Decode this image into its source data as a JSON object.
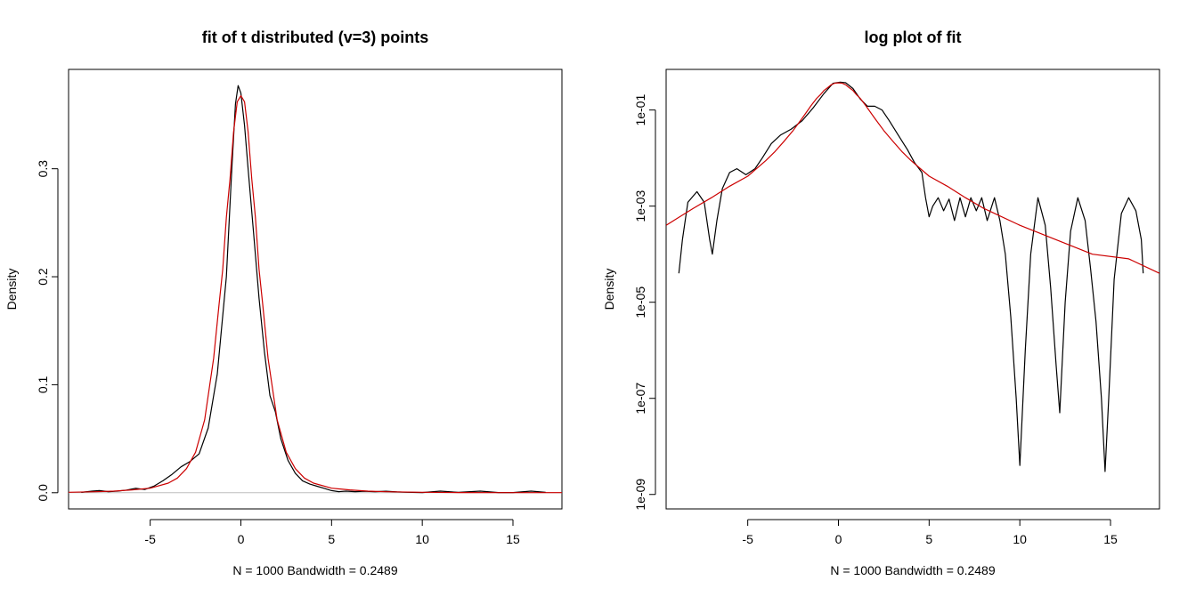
{
  "chart_data": [
    {
      "type": "line",
      "title": "fit of t distributed (v=3) points",
      "xlabel": "N = 1000   Bandwidth = 0.2489",
      "ylabel": "Density",
      "xlim": [
        -9.5,
        17.7
      ],
      "ylim": [
        -0.015,
        0.392
      ],
      "x_ticks": [
        -5,
        0,
        5,
        10,
        15
      ],
      "x_tick_labels": [
        "-5",
        "0",
        "5",
        "10",
        "15"
      ],
      "y_ticks": [
        0.0,
        0.1,
        0.2,
        0.3
      ],
      "y_tick_labels": [
        "0.0",
        "0.1",
        "0.2",
        "0.3"
      ],
      "zero_line": true,
      "series": [
        {
          "color": "#000000",
          "x": [
            -8.8,
            -8.2,
            -7.8,
            -7.3,
            -6.8,
            -6.3,
            -5.8,
            -5.3,
            -4.8,
            -4.3,
            -3.8,
            -3.3,
            -2.8,
            -2.3,
            -1.8,
            -1.3,
            -0.8,
            -0.5,
            -0.3,
            -0.15,
            0.0,
            0.2,
            0.4,
            0.7,
            1.0,
            1.3,
            1.6,
            1.9,
            2.2,
            2.6,
            3.0,
            3.4,
            3.8,
            4.2,
            4.6,
            5.0,
            5.4,
            5.8,
            6.3,
            6.8,
            7.4,
            8.0,
            8.6,
            9.2,
            10.0,
            11.0,
            12.0,
            13.2,
            14.2,
            15.0,
            16.0,
            16.8
          ],
          "y": [
            0.0003,
            0.0015,
            0.002,
            0.001,
            0.0015,
            0.0025,
            0.004,
            0.003,
            0.006,
            0.011,
            0.017,
            0.024,
            0.029,
            0.036,
            0.06,
            0.11,
            0.2,
            0.3,
            0.36,
            0.377,
            0.37,
            0.34,
            0.3,
            0.24,
            0.18,
            0.13,
            0.09,
            0.075,
            0.05,
            0.03,
            0.018,
            0.011,
            0.008,
            0.006,
            0.004,
            0.002,
            0.001,
            0.0015,
            0.001,
            0.0014,
            0.001,
            0.0014,
            0.0007,
            0.0004,
            0.0002,
            0.0015,
            0.0003,
            0.0015,
            0.0002,
            0.0002,
            0.0015,
            0.0003
          ]
        },
        {
          "color": "#cc0000",
          "x": [
            -9.5,
            -8,
            -7,
            -6,
            -5,
            -4,
            -3.5,
            -3,
            -2.5,
            -2,
            -1.5,
            -1.2,
            -1,
            -0.8,
            -0.6,
            -0.4,
            -0.2,
            0,
            0.2,
            0.4,
            0.6,
            0.8,
            1,
            1.2,
            1.5,
            2,
            2.5,
            3,
            3.5,
            4,
            5,
            6,
            7,
            8,
            10,
            12,
            14,
            16,
            17.7
          ],
          "y": [
            0.0004,
            0.0009,
            0.0015,
            0.0026,
            0.0042,
            0.0089,
            0.0136,
            0.0223,
            0.0375,
            0.0675,
            0.1245,
            0.1752,
            0.2067,
            0.2551,
            0.2907,
            0.3342,
            0.362,
            0.3676,
            0.362,
            0.3342,
            0.2907,
            0.2551,
            0.2067,
            0.1752,
            0.1245,
            0.0675,
            0.0375,
            0.0223,
            0.0136,
            0.0089,
            0.0042,
            0.0026,
            0.0015,
            0.0009,
            0.0004,
            0.0002,
            0.0001,
            8e-05,
            4e-05
          ]
        }
      ]
    },
    {
      "type": "line",
      "title": "log plot of fit",
      "xlabel": "N = 1000   Bandwidth = 0.2489",
      "ylabel": "Density",
      "y_scale": "log",
      "xlim": [
        -9.5,
        17.7
      ],
      "ylim": [
        5e-10,
        0.7
      ],
      "x_ticks": [
        -5,
        0,
        5,
        10,
        15
      ],
      "x_tick_labels": [
        "-5",
        "0",
        "5",
        "10",
        "15"
      ],
      "y_ticks": [
        1e-09,
        1e-07,
        1e-05,
        0.001,
        0.1
      ],
      "y_tick_labels": [
        "1e-09",
        "1e-07",
        "1e-05",
        "1e-03",
        "1e-01"
      ],
      "series": [
        {
          "color": "#000000",
          "x": [
            -8.8,
            -8.6,
            -8.3,
            -7.8,
            -7.4,
            -7.1,
            -6.95,
            -6.7,
            -6.4,
            -6.0,
            -5.6,
            -5.1,
            -4.6,
            -4.2,
            -3.7,
            -3.2,
            -2.6,
            -2.0,
            -1.4,
            -0.8,
            -0.3,
            0.1,
            0.4,
            0.8,
            1.2,
            1.6,
            2.0,
            2.4,
            2.8,
            3.3,
            3.8,
            4.2,
            4.6,
            4.8,
            5.0,
            5.2,
            5.5,
            5.8,
            6.1,
            6.4,
            6.7,
            7.0,
            7.3,
            7.6,
            7.9,
            8.2,
            8.6,
            8.9,
            9.2,
            9.5,
            9.8,
            10.0,
            10.3,
            10.6,
            11.0,
            11.4,
            11.7,
            12.0,
            12.2,
            12.5,
            12.8,
            13.2,
            13.6,
            13.9,
            14.2,
            14.5,
            14.7,
            14.9,
            15.2,
            15.6,
            16.0,
            16.4,
            16.7,
            16.8
          ],
          "y": [
            4e-05,
            0.0002,
            0.0012,
            0.002,
            0.0012,
            0.0002,
            0.0001,
            0.0005,
            0.0023,
            0.005,
            0.006,
            0.0045,
            0.006,
            0.01,
            0.02,
            0.03,
            0.04,
            0.06,
            0.11,
            0.22,
            0.36,
            0.38,
            0.37,
            0.28,
            0.17,
            0.12,
            0.12,
            0.1,
            0.06,
            0.03,
            0.015,
            0.008,
            0.005,
            0.0015,
            0.0006,
            0.001,
            0.0015,
            0.0008,
            0.0014,
            0.0005,
            0.0015,
            0.0006,
            0.0015,
            0.0008,
            0.0015,
            0.0005,
            0.0015,
            0.0005,
            0.0001,
            5e-06,
            1e-07,
            4e-09,
            1e-06,
            0.0001,
            0.0015,
            0.0004,
            2e-05,
            5e-07,
            5e-08,
            1e-05,
            0.0003,
            0.0015,
            0.0005,
            5e-05,
            4e-06,
            1e-07,
            3e-09,
            1e-07,
            3e-05,
            0.0007,
            0.0015,
            0.0008,
            0.0002,
            4e-05
          ]
        },
        {
          "color": "#cc0000",
          "x": [
            -9.5,
            -8,
            -7,
            -6,
            -5,
            -4,
            -3.5,
            -3,
            -2.5,
            -2,
            -1.5,
            -1.2,
            -1,
            -0.8,
            -0.6,
            -0.4,
            -0.2,
            0,
            0.2,
            0.4,
            0.6,
            0.8,
            1,
            1.2,
            1.5,
            2,
            2.5,
            3,
            3.5,
            4,
            5,
            6,
            7,
            8,
            10,
            12,
            14,
            16,
            17.7
          ],
          "y": [
            0.0004,
            0.0009,
            0.0015,
            0.0026,
            0.0042,
            0.0089,
            0.0136,
            0.0223,
            0.0375,
            0.0675,
            0.1245,
            0.1752,
            0.2067,
            0.2551,
            0.2907,
            0.3342,
            0.362,
            0.3676,
            0.362,
            0.3342,
            0.2907,
            0.2551,
            0.2067,
            0.1752,
            0.1245,
            0.0675,
            0.0375,
            0.0223,
            0.0136,
            0.0089,
            0.0042,
            0.0026,
            0.0015,
            0.0009,
            0.0004,
            0.0002,
            0.0001,
            8e-05,
            4e-05
          ]
        }
      ]
    }
  ]
}
